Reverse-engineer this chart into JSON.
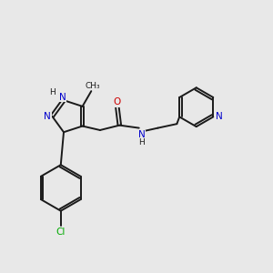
{
  "background_color": "#e8e8e8",
  "bond_color": "#1a1a1a",
  "N_color": "#0000cc",
  "O_color": "#cc0000",
  "Cl_color": "#00aa00",
  "figsize": [
    3.0,
    3.0
  ],
  "dpi": 100,
  "lw": 1.4,
  "xlim": [
    0.0,
    10.0
  ],
  "ylim": [
    0.0,
    10.0
  ]
}
